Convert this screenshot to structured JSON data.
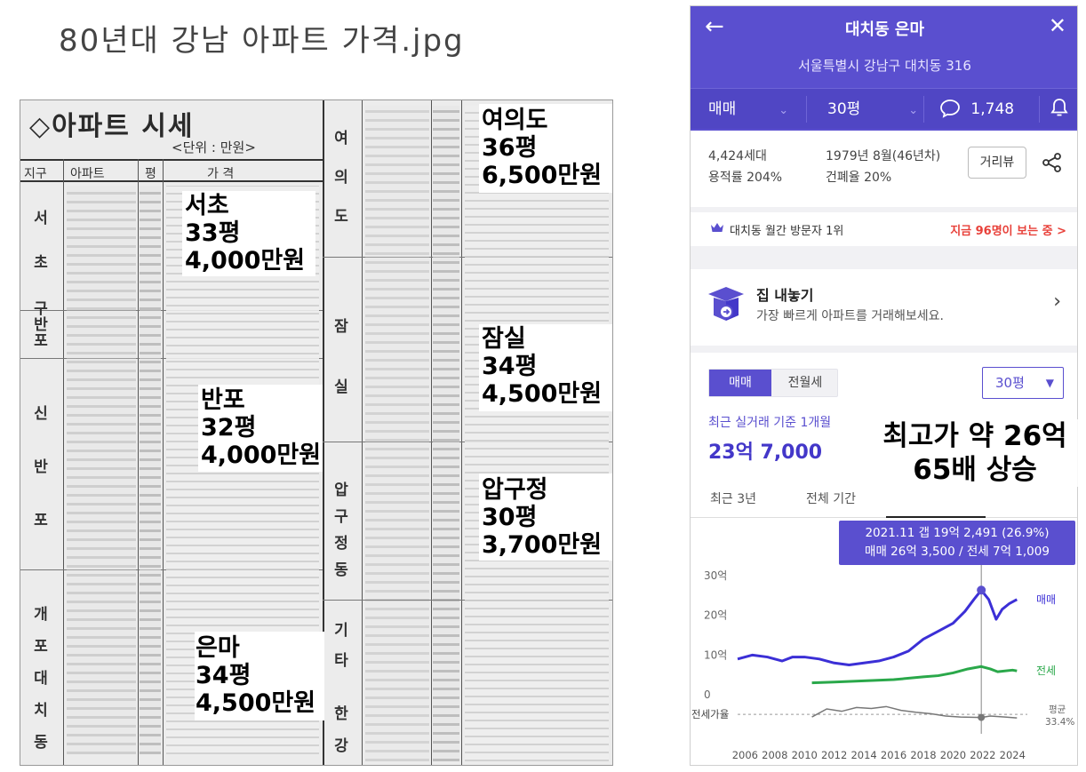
{
  "page_title": "80년대 강남 아파트 가격.jpg",
  "scan": {
    "heading": "◇아파트 시세",
    "unit": "<단위 : 만원>",
    "header_cols": [
      "지구",
      "아파트",
      "평",
      "가  격"
    ],
    "districts_left": [
      "서",
      "초",
      "구반포",
      "신",
      "반",
      "포",
      "개",
      "포",
      "대",
      "치",
      "동"
    ],
    "districts_mid": [
      "여",
      "의",
      "도",
      "잠",
      "실",
      "압",
      "구",
      "정",
      "동",
      "기",
      "타",
      "한",
      "강"
    ]
  },
  "overlays": [
    {
      "area": "서초",
      "size": "33평",
      "price": "4,000만원"
    },
    {
      "area": "반포",
      "size": "32평",
      "price": "4,000만원"
    },
    {
      "area": "은마",
      "size": "34평",
      "price": "4,500만원"
    },
    {
      "area": "여의도",
      "size": "36평",
      "price": "6,500만원"
    },
    {
      "area": "잠실",
      "size": "34평",
      "price": "4,500만원"
    },
    {
      "area": "압구정",
      "size": "30평",
      "price": "3,700만원"
    }
  ],
  "app": {
    "title": "대치동 은마",
    "address": "서울특별시 강남구 대치동 316",
    "tabs": {
      "deal": "매매",
      "size": "30평",
      "comments": "1,748"
    },
    "info": {
      "households": "4,424세대",
      "floor_area_ratio": "용적률 204%",
      "built": "1979년 8월(46년차)",
      "coverage": "건폐율 20%",
      "distance_button": "거리뷰"
    },
    "visit": {
      "left": "대치동 월간 방문자 1위",
      "right": "지금 96명이 보는 중 >"
    },
    "sell": {
      "title": "집 내놓기",
      "subtitle": "가장 빠르게 아파트를 거래해보세요."
    },
    "segment": {
      "a": "매매",
      "b": "전월세"
    },
    "size_select": "30평",
    "recent_label": "최근 실거래 기준 1개월",
    "recent_value": "23억 7,000",
    "period_tabs": [
      "최근 3년",
      "전체 기간",
      "",
      ""
    ],
    "tooltip": {
      "line1": "2021.11  갭 19억 2,491 (26.9%)",
      "line2": "매매 26억 3,500 / 전세 7억 1,009"
    },
    "overlay_text": [
      "최고가 약 26억",
      "65배 상승"
    ],
    "colors": {
      "brand": "#5a4fcf",
      "sale": "#3b2fd6",
      "jeonse": "#2aa84a",
      "ratio": "#777777",
      "alert": "#e8413a"
    }
  },
  "chart_data": {
    "type": "line",
    "x_ticks": [
      "2006",
      "2008",
      "2010",
      "2012",
      "2014",
      "2016",
      "2018",
      "2020",
      "2022",
      "2024"
    ],
    "y_ticks": [
      "30억",
      "20억",
      "10억",
      "0"
    ],
    "ylim": [
      0,
      30
    ],
    "xlim": [
      2005.5,
      2025
    ],
    "series": [
      {
        "name": "매매",
        "color": "#3b2fd6",
        "x": [
          2005.5,
          2006.5,
          2007.5,
          2008.5,
          2009.2,
          2010,
          2011,
          2012,
          2013,
          2014,
          2015,
          2016,
          2017,
          2018,
          2019,
          2020,
          2020.8,
          2021.4,
          2021.9,
          2022.4,
          2022.9,
          2023.3,
          2023.8,
          2024.3
        ],
        "y": [
          9,
          10,
          9.5,
          8.5,
          9.5,
          9.5,
          9,
          8,
          7.5,
          8,
          8.5,
          9.5,
          11,
          14,
          16,
          18,
          21,
          24,
          26.35,
          24,
          19,
          21.5,
          23,
          24
        ]
      },
      {
        "name": "전세",
        "color": "#2aa84a",
        "x": [
          2010.5,
          2012,
          2014,
          2016,
          2018,
          2019,
          2020,
          2021,
          2021.9,
          2022.5,
          2023,
          2024,
          2024.3
        ],
        "y": [
          3,
          3.2,
          3.5,
          3.8,
          4.5,
          4.8,
          5.5,
          6.5,
          7.1,
          6.5,
          5.8,
          6.2,
          6
        ]
      }
    ],
    "secondary": {
      "name": "전세가율",
      "avg_label": "평균",
      "avg_value": "33.4%",
      "x": [
        2010.5,
        2011.5,
        2012.5,
        2013.5,
        2014.5,
        2015.5,
        2016.5,
        2017.5,
        2018.5,
        2019.5,
        2020.5,
        2021.9,
        2022.5,
        2023.5,
        2024.3
      ],
      "y": [
        28,
        45,
        40,
        48,
        46,
        50,
        42,
        38,
        35,
        30,
        28,
        27,
        30,
        28,
        26
      ]
    },
    "highlight": {
      "x": 2021.9,
      "y": 26.35
    }
  }
}
